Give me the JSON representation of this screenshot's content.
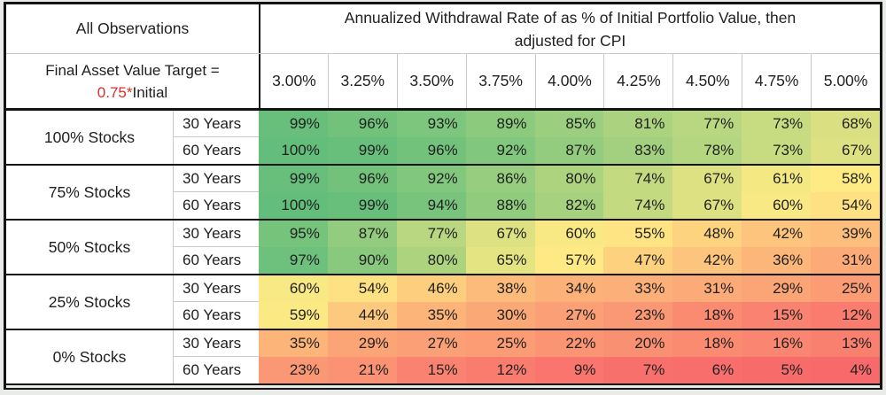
{
  "colors": {
    "border_dark": "#141414",
    "grid_light": "#c9c9c9",
    "text": "#1f1f1f",
    "target_red": "#d92d2d",
    "page_background": "#e9ebe8"
  },
  "table": {
    "corner": {
      "observations": "All Observations",
      "target_line": "Final Asset Value Target =",
      "target_red": "0.75*",
      "target_suffix": "Initial"
    },
    "header": {
      "title_lines": [
        "Annualized Withdrawal Rate of as % of Initial Portfolio Value, then",
        "adjusted for CPI"
      ]
    },
    "rate_columns": [
      "3.00%",
      "3.25%",
      "3.50%",
      "3.75%",
      "4.00%",
      "4.25%",
      "4.50%",
      "4.75%",
      "5.00%"
    ]
  },
  "heat_scale": {
    "min_value": 4,
    "mid_value": 58,
    "max_value": 100,
    "min_color": "#F8696B",
    "mid_color": "#FFEB84",
    "max_color": "#63BE7B"
  },
  "chart_data": {
    "type": "heatmap",
    "title": "Annualized Withdrawal Rate of as % of Initial Portfolio Value, then adjusted for CPI",
    "subtitle": "All Observations — Final Asset Value Target = 0.75*Initial",
    "unit": "%",
    "columns": [
      "3.00%",
      "3.25%",
      "3.50%",
      "3.75%",
      "4.00%",
      "4.25%",
      "4.50%",
      "4.75%",
      "5.00%"
    ],
    "row_periods": [
      "30 Years",
      "60 Years"
    ],
    "color_scale": {
      "low": "#F8696B",
      "mid": "#FFEB84",
      "high": "#63BE7B"
    },
    "groups": [
      {
        "label": "100% Stocks",
        "rows": [
          {
            "period": "30 Years",
            "values": [
              99,
              96,
              93,
              89,
              85,
              81,
              77,
              73,
              68
            ]
          },
          {
            "period": "60 Years",
            "values": [
              100,
              99,
              96,
              92,
              87,
              83,
              78,
              73,
              67
            ]
          }
        ]
      },
      {
        "label": "75% Stocks",
        "rows": [
          {
            "period": "30 Years",
            "values": [
              99,
              96,
              92,
              86,
              80,
              74,
              67,
              61,
              58
            ]
          },
          {
            "period": "60 Years",
            "values": [
              100,
              99,
              94,
              88,
              82,
              74,
              67,
              60,
              54
            ]
          }
        ]
      },
      {
        "label": "50% Stocks",
        "rows": [
          {
            "period": "30 Years",
            "values": [
              95,
              87,
              77,
              67,
              60,
              55,
              48,
              42,
              39
            ]
          },
          {
            "period": "60 Years",
            "values": [
              97,
              90,
              80,
              65,
              57,
              47,
              42,
              36,
              31
            ]
          }
        ]
      },
      {
        "label": "25% Stocks",
        "rows": [
          {
            "period": "30 Years",
            "values": [
              60,
              54,
              46,
              38,
              34,
              33,
              31,
              29,
              25
            ]
          },
          {
            "period": "60 Years",
            "values": [
              59,
              44,
              35,
              30,
              27,
              23,
              18,
              15,
              12
            ]
          }
        ]
      },
      {
        "label": "0% Stocks",
        "rows": [
          {
            "period": "30 Years",
            "values": [
              35,
              29,
              27,
              25,
              22,
              20,
              18,
              16,
              13
            ]
          },
          {
            "period": "60 Years",
            "values": [
              23,
              21,
              15,
              12,
              9,
              7,
              6,
              5,
              4
            ]
          }
        ]
      }
    ]
  }
}
